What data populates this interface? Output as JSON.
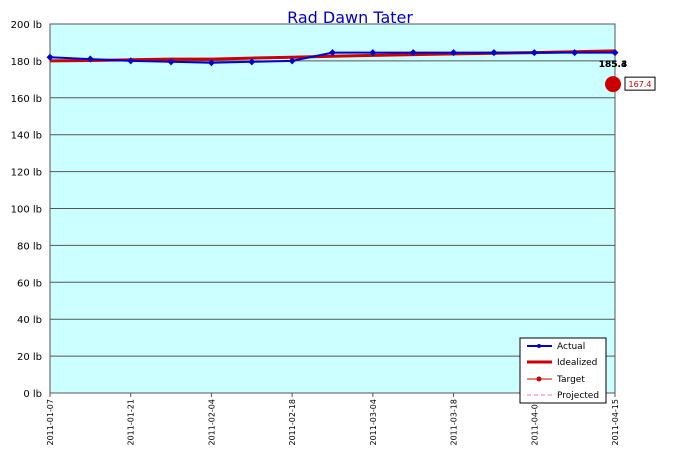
{
  "chart_data": {
    "type": "line",
    "title": "Rad Dawn Tater",
    "ylim": [
      0,
      200
    ],
    "y_ticks": [
      "0 lb",
      "20 lb",
      "40 lb",
      "60 lb",
      "80 lb",
      "100 lb",
      "120 lb",
      "140 lb",
      "160 lb",
      "180 lb",
      "200 lb"
    ],
    "x_range": [
      "2011-01-07",
      "2011-04-15"
    ],
    "x_ticks": [
      "2011-01-07",
      "2011-01-21",
      "2011-02-04",
      "2011-02-18",
      "2011-03-04",
      "2011-03-18",
      "2011-04-01",
      "2011-04-15"
    ],
    "grid": true,
    "legend_position": "bottom-right",
    "colors": {
      "plot_background": "#ccffff",
      "actual": "#0000cc",
      "idealized": "#cc0000",
      "target": "#cc0000",
      "projected": "#ff66cc",
      "title": "#0000cc"
    },
    "series": [
      {
        "name": "Actual",
        "x": [
          "2011-01-07",
          "2011-01-14",
          "2011-01-21",
          "2011-01-28",
          "2011-02-04",
          "2011-02-11",
          "2011-02-18",
          "2011-02-25",
          "2011-03-04",
          "2011-03-11",
          "2011-03-18",
          "2011-03-25",
          "2011-04-01",
          "2011-04-08",
          "2011-04-15"
        ],
        "y": [
          182.0,
          181.0,
          180.0,
          179.5,
          179.0,
          179.5,
          180.0,
          184.5,
          184.5,
          184.5,
          184.5,
          184.5,
          184.5,
          184.5,
          184.5
        ]
      },
      {
        "name": "Idealized",
        "x": [
          "2011-01-07",
          "2011-01-14",
          "2011-01-21",
          "2011-01-28",
          "2011-02-04",
          "2011-02-11",
          "2011-02-18",
          "2011-02-25",
          "2011-03-04",
          "2011-03-11",
          "2011-03-18",
          "2011-03-25",
          "2011-04-01",
          "2011-04-08",
          "2011-04-15"
        ],
        "y": [
          180.0,
          180.2,
          180.6,
          181.0,
          181.0,
          181.5,
          182.0,
          182.5,
          183.0,
          183.4,
          183.8,
          184.2,
          184.5,
          185.0,
          185.4
        ]
      },
      {
        "name": "Target",
        "x": [
          "2011-04-15"
        ],
        "y": [
          167.4
        ]
      },
      {
        "name": "Projected",
        "x": [],
        "y": []
      }
    ],
    "annotations": {
      "end_labels": [
        "185.4",
        "185.3"
      ],
      "target_label": "167.4"
    }
  }
}
